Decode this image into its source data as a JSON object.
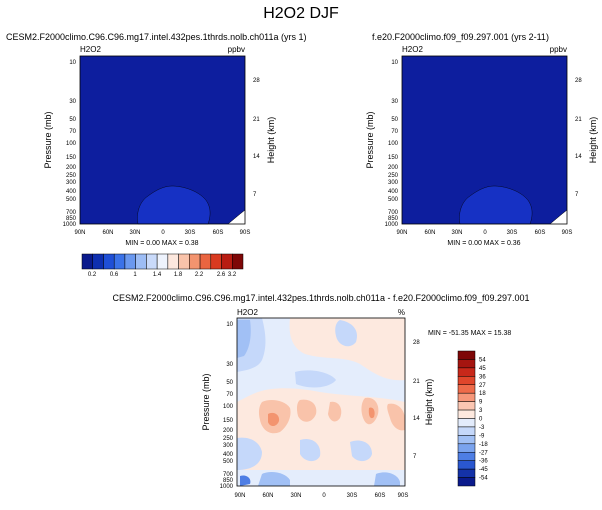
{
  "page_title": "H2O2 DJF",
  "panels": {
    "p1": {
      "title": "CESM2.F2000climo.C96.C96.mg17.intel.432pes.1thrds.nolb.ch011a (yrs 1)",
      "var_label": "H2O2",
      "units": "ppbv",
      "min_max": "MIN =  0.00   MAX =  0.38"
    },
    "p2": {
      "title": "f.e20.F2000climo.f09_f09.297.001 (yrs 2-11)",
      "var_label": "H2O2",
      "units": "ppbv",
      "min_max": "MIN =  0.00   MAX =  0.36"
    },
    "p3": {
      "title": "CESM2.F2000climo.C96.C96.mg17.intel.432pes.1thrds.nolb.ch011a - f.e20.F2000climo.f09_f09.297.001",
      "var_label": "H2O2",
      "units": "%",
      "min_max": "MIN = -51.35   MAX = 15.38"
    }
  },
  "axes": {
    "ylabel": "Pressure (mb)",
    "ylabel_right": "Height (km)",
    "pressure_ticks": [
      "10",
      "30",
      "50",
      "70",
      "100",
      "150",
      "200",
      "250",
      "300",
      "400",
      "500",
      "700",
      "850",
      "1000"
    ],
    "height_ticks": [
      "28",
      "21",
      "14",
      "7"
    ],
    "x_ticks": [
      "90N",
      "60N",
      "30N",
      "0",
      "30S",
      "60S",
      "90S"
    ]
  },
  "colorbar_top": {
    "labels": [
      "0.2",
      "0.6",
      "1",
      "1.4",
      "1.8",
      "2.2",
      "2.6",
      "3.2"
    ],
    "colors": [
      "#0a1a8c",
      "#0e2fb0",
      "#1f4fd6",
      "#3b72e8",
      "#6a98ef",
      "#9dbdf5",
      "#c9dafa",
      "#eef3fd",
      "#fde8de",
      "#f9c3aa",
      "#f3946f",
      "#ea6540",
      "#d93a20",
      "#b81c12",
      "#7e0707"
    ]
  },
  "colorbar_diff": {
    "labels": [
      "54",
      "45",
      "36",
      "27",
      "18",
      "9",
      "3",
      "0",
      "-3",
      "-9",
      "-18",
      "-27",
      "-36",
      "-45",
      "-54"
    ],
    "colors": [
      "#7e0707",
      "#a51510",
      "#c8281a",
      "#e0462b",
      "#ee6b4a",
      "#f6977a",
      "#fbc6b2",
      "#fde9df",
      "#e3ecfc",
      "#c5d8fa",
      "#a1c0f5",
      "#7aa3ee",
      "#4e7ee4",
      "#2a57cf",
      "#1432a8",
      "#0a1a8c"
    ]
  },
  "chart_data": [
    {
      "type": "heatmap",
      "title": "CESM2.F2000climo.C96.C96.mg17.intel.432pes.1thrds.nolb.ch011a (yrs 1)",
      "variable": "H2O2",
      "units": "ppbv",
      "xlabel": "",
      "ylabel": "Pressure (mb)",
      "ylabel_right": "Height (km)",
      "x_range": [
        "90N",
        "90S"
      ],
      "y_range_mb": [
        10,
        1000
      ],
      "y_scale": "log",
      "min": 0.0,
      "max": 0.38,
      "contour_levels": [
        0.2,
        0.4,
        0.6,
        0.8,
        1,
        1.2,
        1.4,
        1.6,
        1.8,
        2,
        2.2,
        2.4,
        2.6,
        2.8,
        3,
        3.2
      ]
    },
    {
      "type": "heatmap",
      "title": "f.e20.F2000climo.f09_f09.297.001 (yrs 2-11)",
      "variable": "H2O2",
      "units": "ppbv",
      "xlabel": "",
      "ylabel": "Pressure (mb)",
      "ylabel_right": "Height (km)",
      "x_range": [
        "90N",
        "90S"
      ],
      "y_range_mb": [
        10,
        1000
      ],
      "y_scale": "log",
      "min": 0.0,
      "max": 0.36,
      "contour_levels": [
        0.2,
        0.4,
        0.6,
        0.8,
        1,
        1.2,
        1.4,
        1.6,
        1.8,
        2,
        2.2,
        2.4,
        2.6,
        2.8,
        3,
        3.2
      ]
    },
    {
      "type": "heatmap",
      "title": "CESM2.F2000climo.C96.C96.mg17.intel.432pes.1thrds.nolb.ch011a - f.e20.F2000climo.f09_f09.297.001",
      "variable": "H2O2",
      "units": "%",
      "xlabel": "",
      "ylabel": "Pressure (mb)",
      "ylabel_right": "Height (km)",
      "x_range": [
        "90N",
        "90S"
      ],
      "y_range_mb": [
        10,
        1000
      ],
      "y_scale": "log",
      "min": -51.35,
      "max": 15.38,
      "contour_levels": [
        -54,
        -45,
        -36,
        -27,
        -18,
        -9,
        -3,
        0,
        3,
        9,
        18,
        27,
        36,
        45,
        54
      ]
    }
  ]
}
